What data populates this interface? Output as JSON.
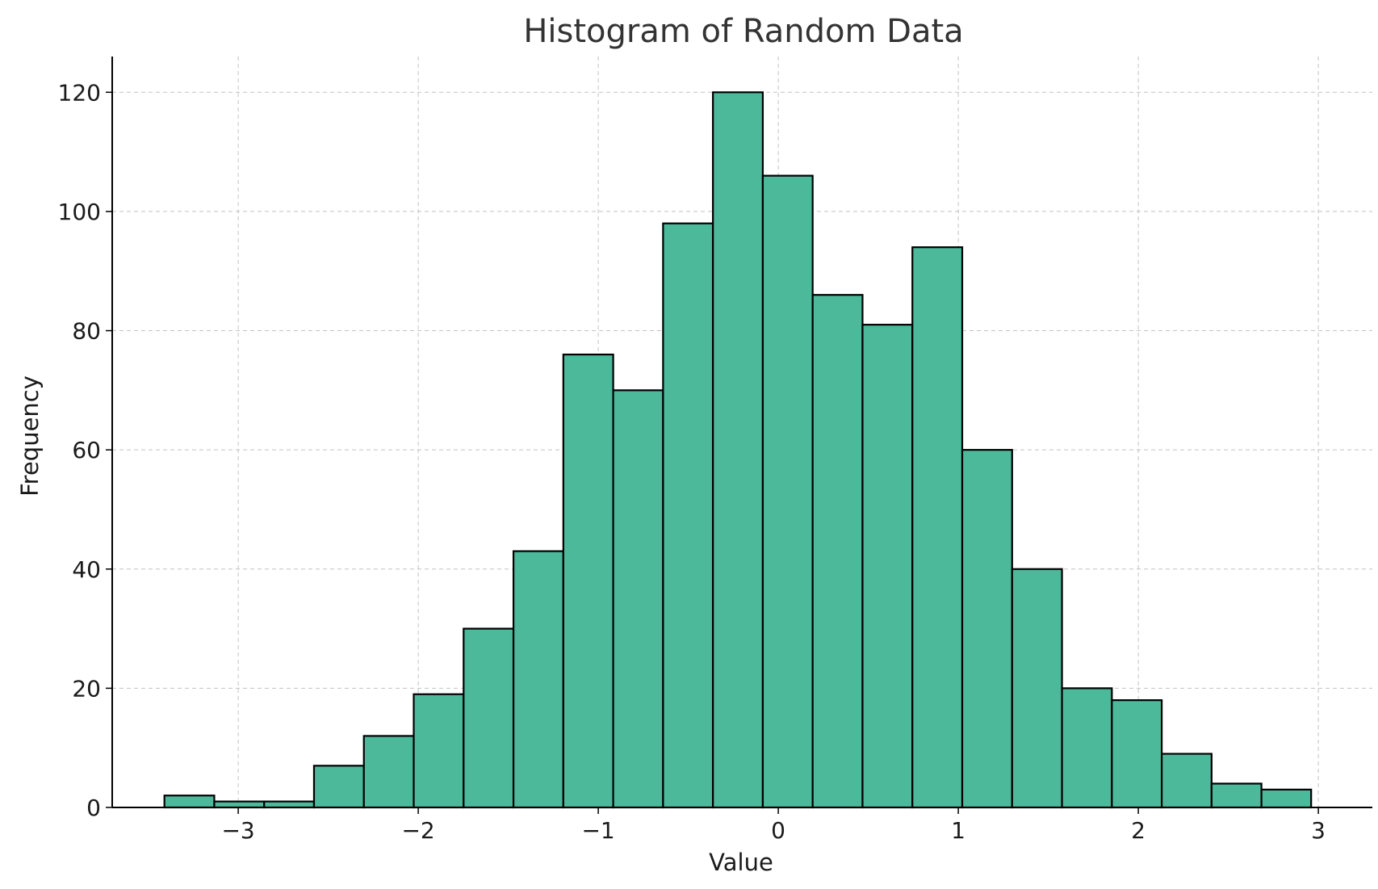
{
  "chart_data": {
    "type": "bar",
    "title": "Histogram of Random Data",
    "xlabel": "Value",
    "ylabel": "Frequency",
    "xlim": [
      -3.7,
      3.3
    ],
    "ylim": [
      0,
      126
    ],
    "grid": true,
    "bar_color": "#4cb99a",
    "edge_color": "#000000",
    "x_ticks": [
      -3,
      -2,
      -1,
      0,
      1,
      2,
      3
    ],
    "x_tick_labels": [
      "−3",
      "−2",
      "−1",
      "0",
      "1",
      "2",
      "3"
    ],
    "y_ticks": [
      0,
      20,
      40,
      60,
      80,
      100,
      120
    ],
    "y_tick_labels": [
      "0",
      "20",
      "40",
      "60",
      "80",
      "100",
      "120"
    ],
    "bin_edges": [
      -3.41,
      -3.133,
      -2.856,
      -2.579,
      -2.302,
      -2.025,
      -1.748,
      -1.471,
      -1.194,
      -0.917,
      -0.64,
      -0.363,
      -0.086,
      0.191,
      0.468,
      0.745,
      1.022,
      1.299,
      1.576,
      1.853,
      2.13,
      2.407,
      2.684,
      2.96
    ],
    "values": [
      2,
      1,
      1,
      7,
      12,
      19,
      30,
      43,
      76,
      70,
      98,
      120,
      106,
      86,
      81,
      94,
      60,
      40,
      20,
      18,
      9,
      4,
      3
    ]
  }
}
